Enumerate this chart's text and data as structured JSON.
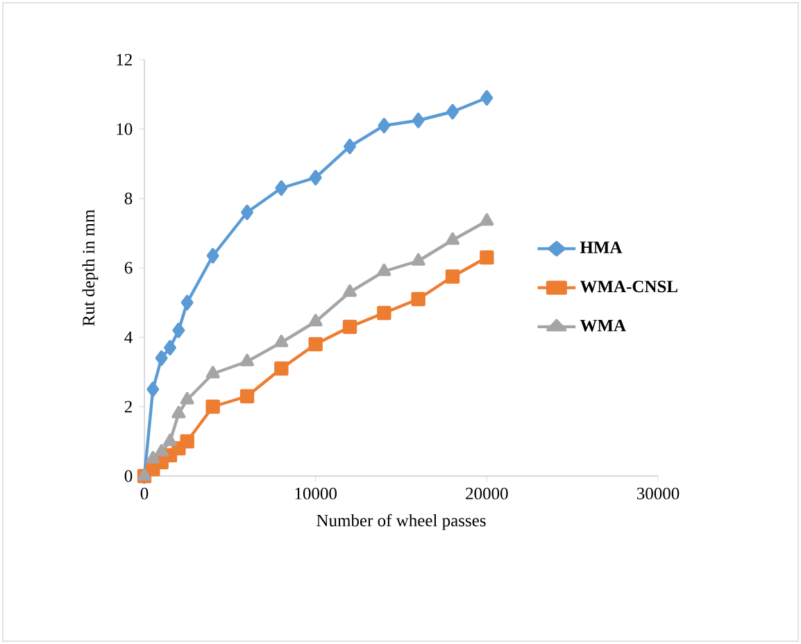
{
  "chart_data": {
    "type": "line",
    "xlabel": "Number of wheel passes",
    "ylabel": "Rut depth in mm",
    "x": [
      0,
      500,
      1000,
      1500,
      2000,
      2500,
      4000,
      6000,
      8000,
      10000,
      12000,
      14000,
      16000,
      18000,
      20000
    ],
    "series": [
      {
        "name": "HMA",
        "color": "#5b9bd5",
        "marker": "diamond",
        "values": [
          0,
          2.5,
          3.4,
          3.7,
          4.2,
          5.0,
          6.35,
          7.6,
          8.3,
          8.6,
          9.5,
          10.1,
          10.25,
          10.5,
          10.9
        ]
      },
      {
        "name": "WMA-CNSL",
        "color": "#ed7d31",
        "marker": "square",
        "values": [
          0,
          0.2,
          0.4,
          0.6,
          0.8,
          1.0,
          2.0,
          2.3,
          3.1,
          3.8,
          4.3,
          4.7,
          5.1,
          5.75,
          6.3
        ]
      },
      {
        "name": "WMA",
        "color": "#a5a5a5",
        "marker": "triangle",
        "values": [
          0,
          0.5,
          0.7,
          1.0,
          1.8,
          2.2,
          2.95,
          3.3,
          3.85,
          4.45,
          5.3,
          5.9,
          6.2,
          6.8,
          7.35
        ]
      }
    ],
    "xlim": [
      0,
      30000
    ],
    "xticks": [
      0,
      10000,
      20000,
      30000
    ],
    "ylim": [
      0,
      12
    ],
    "yticks": [
      0,
      2,
      4,
      6,
      8,
      10,
      12
    ],
    "grid": false,
    "legend": "right",
    "line_style": "solid"
  }
}
